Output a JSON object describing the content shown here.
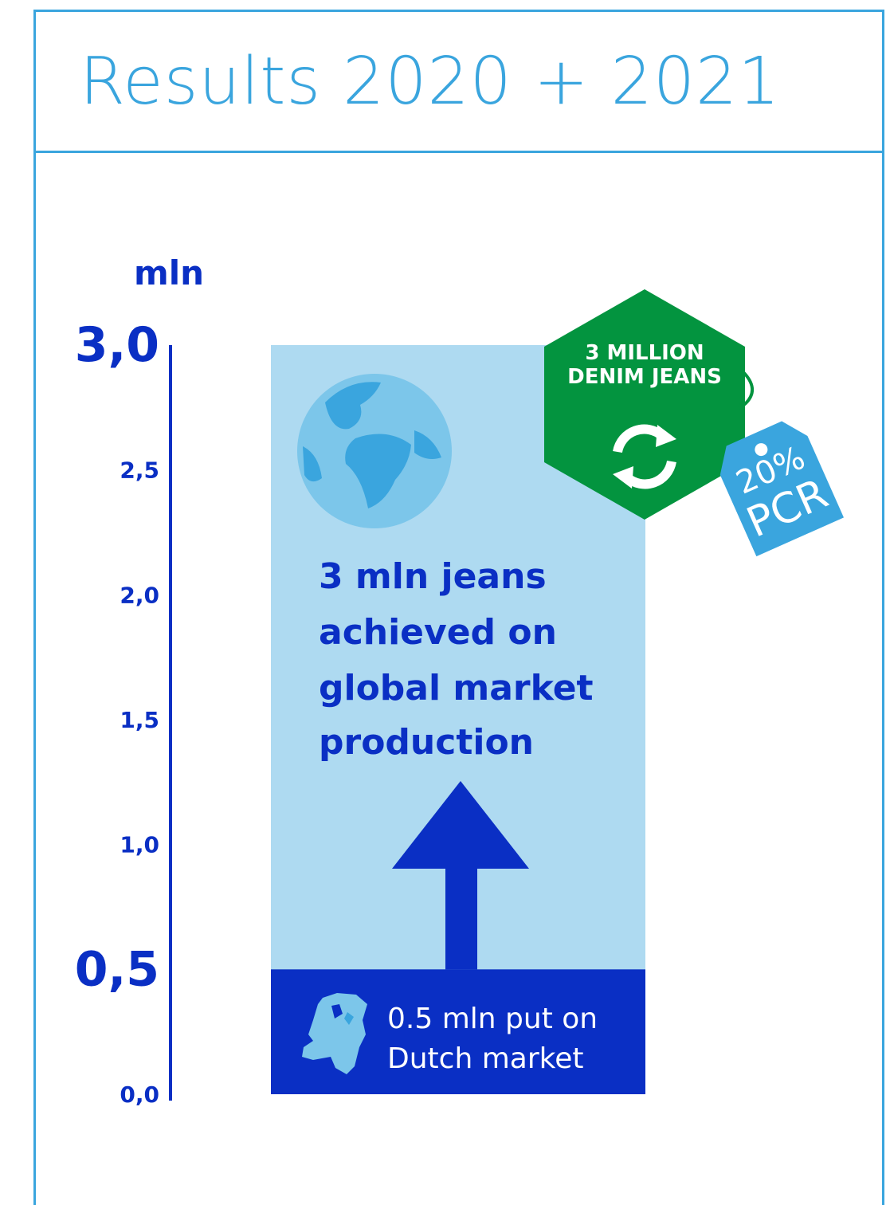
{
  "title": "Results 2020 + 2021",
  "colors": {
    "frame": "#3aa5de",
    "axis": "#0a2fc4",
    "bar_global": "#aedaf1",
    "bar_dutch": "#0a2fc4",
    "arrow": "#0a2fc4",
    "badge_green": "#03943f",
    "tag_blue": "#3aa5de"
  },
  "chart_data": {
    "type": "bar",
    "ylabel": "mln",
    "ylim": [
      0,
      3.0
    ],
    "yticks": [
      {
        "value": 0.0,
        "label": "0,0"
      },
      {
        "value": 0.5,
        "label": "0,5"
      },
      {
        "value": 1.0,
        "label": "1,0"
      },
      {
        "value": 1.5,
        "label": "1,5"
      },
      {
        "value": 2.0,
        "label": "2,0"
      },
      {
        "value": 2.5,
        "label": "2,5"
      },
      {
        "value": 3.0,
        "label": "3,0"
      }
    ],
    "emphasized_ticks": [
      0.5,
      3.0
    ],
    "series": [
      {
        "values": [
          3.0
        ],
        "label_lines": [
          "3 mln jeans",
          "achieved on",
          "global market",
          "production"
        ]
      },
      {
        "values": [
          0.5
        ],
        "label_lines": [
          "0.5 mln put on",
          "Dutch market"
        ]
      }
    ]
  },
  "badge": {
    "line1": "3 MILLION",
    "line2": "DENIM JEANS",
    "icon": "recycle-icon"
  },
  "tag": {
    "line1": "20%",
    "line2": "PCR"
  },
  "icons": {
    "globe": "globe-icon",
    "netherlands": "netherlands-map-icon",
    "arrow": "arrow-up-icon"
  }
}
